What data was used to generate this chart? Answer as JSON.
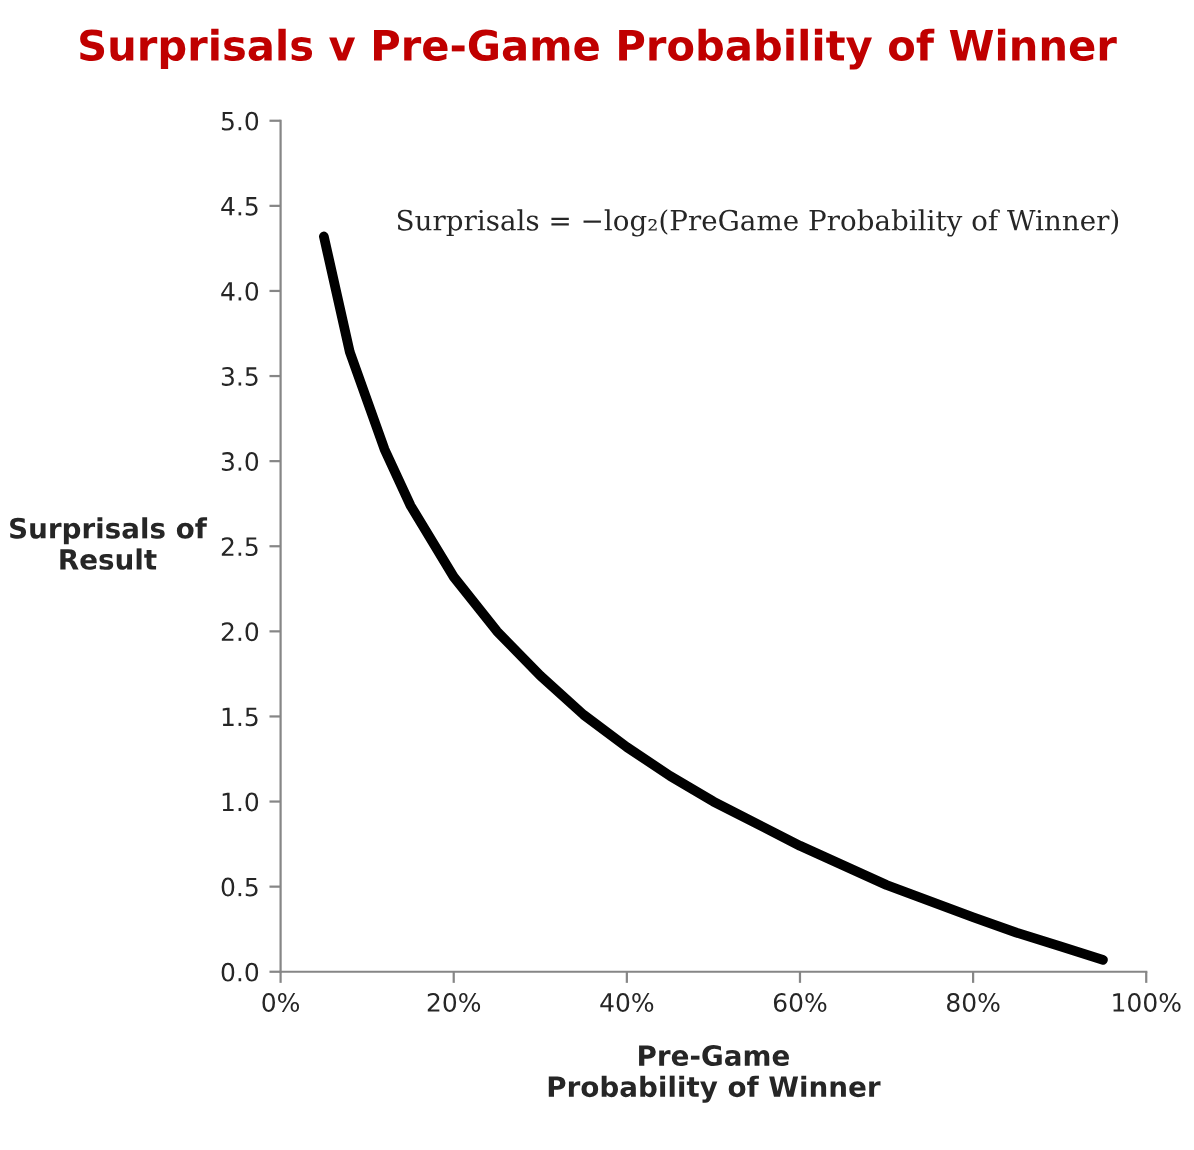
{
  "chart_data": {
    "type": "line",
    "title": "Surprisals v Pre-Game Probability of Winner",
    "xlabel": "Pre-Game\nProbability of Winner",
    "ylabel": "Surprisals of\nResult",
    "annotations": [
      "Surprisals = −log₂(PreGame Probability of Winner)"
    ],
    "x": [
      5,
      8,
      12,
      15,
      20,
      25,
      30,
      35,
      40,
      45,
      50,
      60,
      70,
      80,
      85,
      90,
      95
    ],
    "series": [
      {
        "color": "#000000",
        "values": [
          4.32,
          3.64,
          3.07,
          2.74,
          2.32,
          2.0,
          1.74,
          1.51,
          1.32,
          1.15,
          1.0,
          0.74,
          0.51,
          0.32,
          0.23,
          0.15,
          0.07
        ]
      }
    ],
    "xlim": [
      0,
      100
    ],
    "xticks": [
      {
        "value": 0,
        "label": "0%"
      },
      {
        "value": 20,
        "label": "20%"
      },
      {
        "value": 40,
        "label": "40%"
      },
      {
        "value": 60,
        "label": "60%"
      },
      {
        "value": 80,
        "label": "80%"
      },
      {
        "value": 100,
        "label": "100%"
      }
    ],
    "ylim": [
      0,
      5
    ],
    "yticks": [
      {
        "value": 0,
        "label": "0.0"
      },
      {
        "value": 0.5,
        "label": "0.5"
      },
      {
        "value": 1,
        "label": "1.0"
      },
      {
        "value": 1.5,
        "label": "1.5"
      },
      {
        "value": 2,
        "label": "2.0"
      },
      {
        "value": 2.5,
        "label": "2.5"
      },
      {
        "value": 3,
        "label": "3.0"
      },
      {
        "value": 3.5,
        "label": "3.5"
      },
      {
        "value": 4,
        "label": "4.0"
      },
      {
        "value": 4.5,
        "label": "4.5"
      },
      {
        "value": 5,
        "label": "5.0"
      }
    ],
    "grid": false,
    "legend": false
  }
}
